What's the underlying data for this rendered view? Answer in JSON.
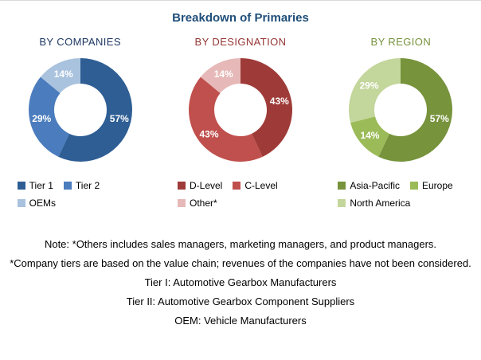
{
  "title": "Breakdown of Primaries",
  "title_color": "#1F4E79",
  "chart_data": [
    {
      "type": "pie",
      "donut": true,
      "title": "BY COMPANIES",
      "title_color": "#1F3864",
      "labels": [
        "Tier 1",
        "Tier 2",
        "OEMs"
      ],
      "values": [
        57,
        29,
        14
      ],
      "value_labels": [
        "57%",
        "29%",
        "14%"
      ],
      "colors": [
        "#2E5E94",
        "#4A7CBE",
        "#A9C2DE"
      ],
      "slice_label_color": "#FFFFFF",
      "start_angle_deg": -90,
      "direction": "clockwise",
      "legend_position": "bottom"
    },
    {
      "type": "pie",
      "donut": true,
      "title": "BY DESIGNATION",
      "title_color": "#943634",
      "labels": [
        "D-Level",
        "C-Level",
        "Other*"
      ],
      "values": [
        43,
        43,
        14
      ],
      "value_labels": [
        "43%",
        "43%",
        "14%"
      ],
      "colors": [
        "#9E3B38",
        "#C0504D",
        "#E6B9B8"
      ],
      "slice_label_color": "#FFFFFF",
      "start_angle_deg": -90,
      "direction": "clockwise",
      "legend_position": "bottom"
    },
    {
      "type": "pie",
      "donut": true,
      "title": "BY REGION",
      "title_color": "#76923C",
      "labels": [
        "Asia-Pacific",
        "Europe",
        "North America"
      ],
      "values": [
        57,
        14,
        29
      ],
      "value_labels": [
        "57%",
        "14%",
        "29%"
      ],
      "colors": [
        "#77933C",
        "#9BBB59",
        "#C3D69B"
      ],
      "slice_label_color": "#FFFFFF",
      "start_angle_deg": -90,
      "direction": "clockwise",
      "legend_position": "bottom"
    }
  ],
  "notes": [
    "Note: *Others includes sales managers, marketing managers, and product managers.",
    "*Company tiers are based on the value chain; revenues of the companies have not been considered.",
    "Tier I: Automotive Gearbox Manufacturers",
    "Tier II: Automotive Gearbox Component Suppliers",
    "OEM: Vehicle Manufacturers"
  ]
}
